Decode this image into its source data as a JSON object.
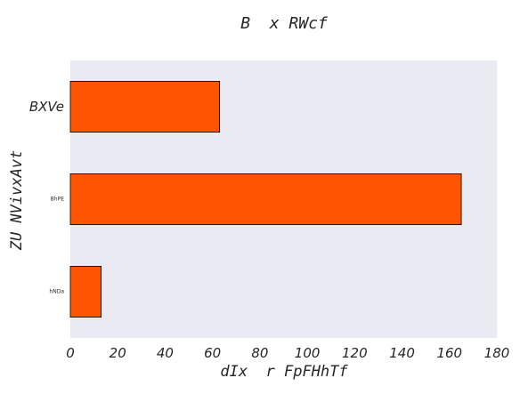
{
  "chart_data": {
    "type": "bar",
    "orientation": "horizontal",
    "title": "B  x RWcf",
    "xlabel": "dIx  r FpFHhTf",
    "ylabel": "ZU NVivxAvt",
    "categories": [
      "BXVe",
      "BhPE",
      "hNDa"
    ],
    "values": [
      63,
      165,
      13
    ],
    "xlim": [
      0,
      180
    ],
    "xticks": [
      0,
      20,
      40,
      60,
      80,
      100,
      120,
      140,
      160,
      180
    ],
    "grid": false,
    "bar_color": "#ff5500",
    "bar_edge_color": "#000000",
    "plot_background": "#eaeaf2"
  }
}
